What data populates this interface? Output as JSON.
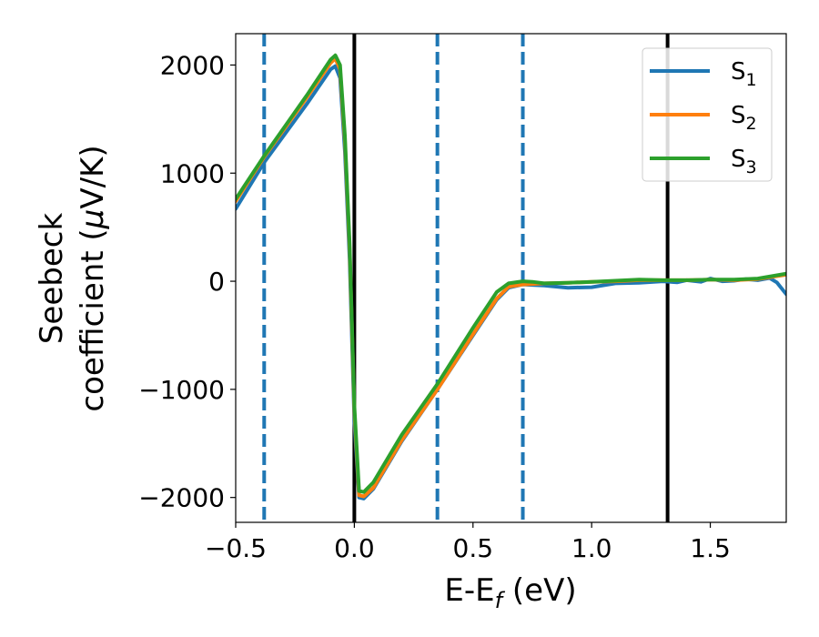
{
  "chart_data": {
    "type": "line",
    "title": "",
    "xlabel": {
      "main": "E-E",
      "sub": "f",
      "unit": " (eV)"
    },
    "ylabel": {
      "line1": "Seebeck",
      "line2_prefix": "coefficient  (",
      "mu": "μ",
      "line2_suffix": "V/K)"
    },
    "xlim": [
      -0.5,
      1.82
    ],
    "ylim": [
      -2230,
      2290
    ],
    "xticks": [
      -0.5,
      0.0,
      0.5,
      1.0,
      1.5
    ],
    "xtick_labels": [
      "−0.5",
      "0.0",
      "0.5",
      "1.0",
      "1.5"
    ],
    "yticks": [
      -2000,
      -1000,
      0,
      1000,
      2000
    ],
    "ytick_labels": [
      "−2000",
      "−1000",
      "0",
      "1000",
      "2000"
    ],
    "grid": false,
    "legend_position": "top-right",
    "vertical_lines": [
      {
        "x": -0.38,
        "style": "dashed",
        "color": "#1f77b4"
      },
      {
        "x": 0.0,
        "style": "solid",
        "color": "#000000"
      },
      {
        "x": 0.35,
        "style": "dashed",
        "color": "#1f77b4"
      },
      {
        "x": 0.71,
        "style": "dashed",
        "color": "#1f77b4"
      },
      {
        "x": 1.32,
        "style": "solid",
        "color": "#000000"
      }
    ],
    "series": [
      {
        "name": "S",
        "sub": "1",
        "color": "#1f77b4",
        "points": [
          [
            -0.5,
            670
          ],
          [
            -0.38,
            1100
          ],
          [
            -0.2,
            1640
          ],
          [
            -0.1,
            1960
          ],
          [
            -0.08,
            1990
          ],
          [
            -0.06,
            1880
          ],
          [
            -0.04,
            1200
          ],
          [
            -0.02,
            200
          ],
          [
            0.0,
            -1300
          ],
          [
            0.02,
            -2000
          ],
          [
            0.04,
            -2010
          ],
          [
            0.08,
            -1920
          ],
          [
            0.2,
            -1480
          ],
          [
            0.35,
            -1000
          ],
          [
            0.5,
            -500
          ],
          [
            0.6,
            -170
          ],
          [
            0.65,
            -60
          ],
          [
            0.71,
            -30
          ],
          [
            0.8,
            -40
          ],
          [
            0.9,
            -60
          ],
          [
            1.0,
            -55
          ],
          [
            1.1,
            -20
          ],
          [
            1.2,
            -15
          ],
          [
            1.3,
            0
          ],
          [
            1.36,
            -10
          ],
          [
            1.4,
            10
          ],
          [
            1.46,
            -5
          ],
          [
            1.5,
            25
          ],
          [
            1.55,
            0
          ],
          [
            1.6,
            5
          ],
          [
            1.65,
            20
          ],
          [
            1.7,
            10
          ],
          [
            1.75,
            30
          ],
          [
            1.78,
            -10
          ],
          [
            1.82,
            -120
          ]
        ]
      },
      {
        "name": "S",
        "sub": "2",
        "color": "#ff7f0e",
        "points": [
          [
            -0.5,
            740
          ],
          [
            -0.38,
            1150
          ],
          [
            -0.2,
            1700
          ],
          [
            -0.1,
            2020
          ],
          [
            -0.08,
            2060
          ],
          [
            -0.06,
            1960
          ],
          [
            -0.04,
            1300
          ],
          [
            -0.02,
            300
          ],
          [
            0.0,
            -1200
          ],
          [
            0.02,
            -1980
          ],
          [
            0.04,
            -1990
          ],
          [
            0.08,
            -1910
          ],
          [
            0.2,
            -1470
          ],
          [
            0.35,
            -1000
          ],
          [
            0.5,
            -490
          ],
          [
            0.6,
            -160
          ],
          [
            0.65,
            -50
          ],
          [
            0.71,
            -30
          ],
          [
            0.8,
            -20
          ],
          [
            0.9,
            -15
          ],
          [
            1.0,
            -5
          ],
          [
            1.1,
            0
          ],
          [
            1.2,
            10
          ],
          [
            1.3,
            10
          ],
          [
            1.4,
            10
          ],
          [
            1.5,
            15
          ],
          [
            1.6,
            10
          ],
          [
            1.7,
            20
          ],
          [
            1.82,
            60
          ]
        ]
      },
      {
        "name": "S",
        "sub": "3",
        "color": "#2ca02c",
        "points": [
          [
            -0.5,
            760
          ],
          [
            -0.38,
            1160
          ],
          [
            -0.2,
            1720
          ],
          [
            -0.1,
            2050
          ],
          [
            -0.08,
            2090
          ],
          [
            -0.06,
            2000
          ],
          [
            -0.04,
            1350
          ],
          [
            -0.02,
            350
          ],
          [
            0.0,
            -1150
          ],
          [
            0.02,
            -1940
          ],
          [
            0.04,
            -1950
          ],
          [
            0.08,
            -1860
          ],
          [
            0.2,
            -1420
          ],
          [
            0.35,
            -950
          ],
          [
            0.5,
            -430
          ],
          [
            0.6,
            -100
          ],
          [
            0.65,
            -20
          ],
          [
            0.71,
            0
          ],
          [
            0.75,
            -5
          ],
          [
            0.8,
            -20
          ],
          [
            0.9,
            -15
          ],
          [
            1.0,
            -5
          ],
          [
            1.1,
            5
          ],
          [
            1.2,
            15
          ],
          [
            1.3,
            10
          ],
          [
            1.4,
            10
          ],
          [
            1.5,
            15
          ],
          [
            1.6,
            15
          ],
          [
            1.7,
            25
          ],
          [
            1.82,
            70
          ]
        ]
      }
    ]
  }
}
